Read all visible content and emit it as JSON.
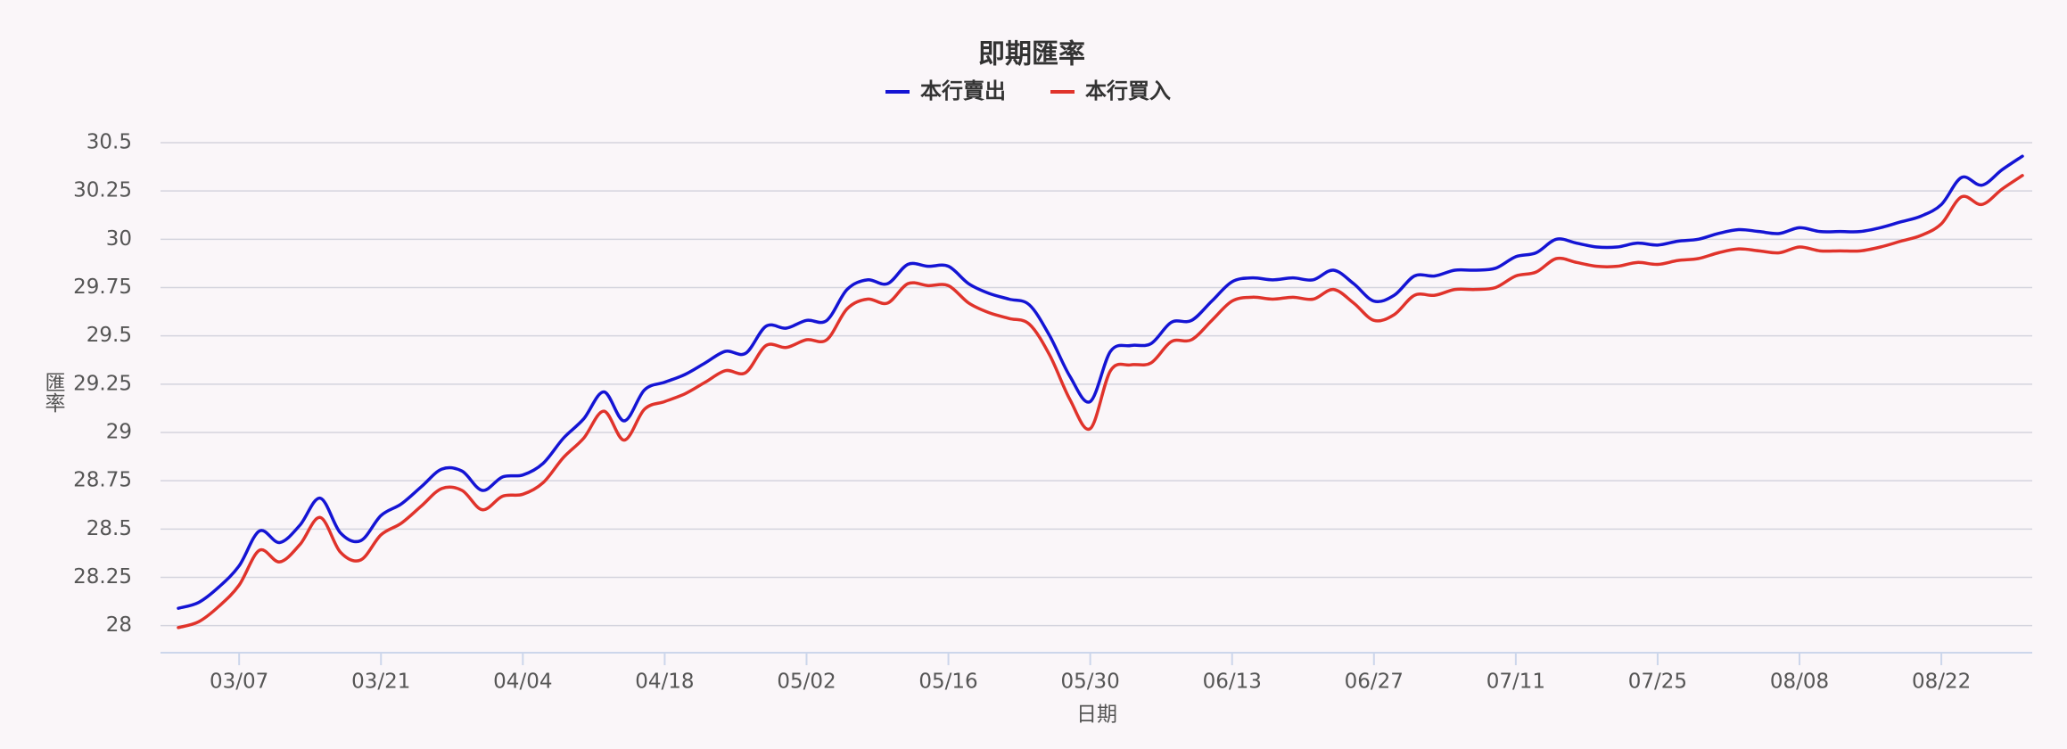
{
  "chart_data": {
    "type": "line",
    "title": "即期匯率",
    "x_label": "日期",
    "y_label": "匯率",
    "categories": [
      "03/01",
      "03/03",
      "03/05",
      "03/07",
      "03/09",
      "03/11",
      "03/13",
      "03/15",
      "03/17",
      "03/19",
      "03/21",
      "03/23",
      "03/25",
      "03/27",
      "03/29",
      "03/31",
      "04/02",
      "04/04",
      "04/06",
      "04/08",
      "04/10",
      "04/12",
      "04/14",
      "04/16",
      "04/18",
      "04/20",
      "04/22",
      "04/24",
      "04/26",
      "04/28",
      "04/30",
      "05/02",
      "05/04",
      "05/06",
      "05/08",
      "05/10",
      "05/12",
      "05/14",
      "05/16",
      "05/18",
      "05/20",
      "05/22",
      "05/24",
      "05/26",
      "05/28",
      "05/30",
      "06/01",
      "06/03",
      "06/05",
      "06/07",
      "06/09",
      "06/11",
      "06/13",
      "06/15",
      "06/17",
      "06/19",
      "06/21",
      "06/23",
      "06/25",
      "06/27",
      "06/29",
      "07/01",
      "07/03",
      "07/05",
      "07/07",
      "07/09",
      "07/11",
      "07/13",
      "07/15",
      "07/17",
      "07/19",
      "07/21",
      "07/23",
      "07/25",
      "07/27",
      "07/29",
      "07/31",
      "08/02",
      "08/04",
      "08/06",
      "08/08",
      "08/10",
      "08/12",
      "08/14",
      "08/16",
      "08/18",
      "08/20",
      "08/22",
      "08/24",
      "08/26",
      "08/28",
      "08/30"
    ],
    "xticks": [
      "03/07",
      "03/21",
      "04/04",
      "04/18",
      "05/02",
      "05/16",
      "05/30",
      "06/13",
      "06/27",
      "07/11",
      "07/25",
      "08/08",
      "08/22"
    ],
    "series": [
      {
        "name": "本行賣出",
        "color": "#1414d4",
        "values": [
          28.09,
          28.12,
          28.2,
          28.31,
          28.49,
          28.43,
          28.52,
          28.66,
          28.48,
          28.44,
          28.57,
          28.63,
          28.72,
          28.81,
          28.8,
          28.7,
          28.77,
          28.78,
          28.84,
          28.97,
          29.07,
          29.21,
          29.06,
          29.22,
          29.26,
          29.3,
          29.36,
          29.42,
          29.41,
          29.55,
          29.54,
          29.58,
          29.58,
          29.74,
          29.79,
          29.77,
          29.87,
          29.86,
          29.86,
          29.77,
          29.72,
          29.69,
          29.66,
          29.5,
          29.29,
          29.16,
          29.42,
          29.45,
          29.46,
          29.57,
          29.58,
          29.68,
          29.78,
          29.8,
          29.79,
          29.8,
          29.79,
          29.84,
          29.77,
          29.68,
          29.71,
          29.81,
          29.81,
          29.84,
          29.84,
          29.85,
          29.91,
          29.93,
          30.0,
          29.98,
          29.96,
          29.96,
          29.98,
          29.97,
          29.99,
          30.0,
          30.03,
          30.05,
          30.04,
          30.03,
          30.06,
          30.04,
          30.04,
          30.04,
          30.06,
          30.09,
          30.12,
          30.18,
          30.32,
          30.28,
          30.36,
          30.43
        ]
      },
      {
        "name": "本行買入",
        "color": "#e0332b",
        "values": [
          27.99,
          28.02,
          28.1,
          28.21,
          28.39,
          28.33,
          28.42,
          28.56,
          28.38,
          28.34,
          28.47,
          28.53,
          28.62,
          28.71,
          28.7,
          28.6,
          28.67,
          28.68,
          28.74,
          28.87,
          28.97,
          29.11,
          28.96,
          29.12,
          29.16,
          29.2,
          29.26,
          29.32,
          29.31,
          29.45,
          29.44,
          29.48,
          29.48,
          29.64,
          29.69,
          29.67,
          29.77,
          29.76,
          29.76,
          29.67,
          29.62,
          29.59,
          29.56,
          29.4,
          29.17,
          29.02,
          29.32,
          29.35,
          29.36,
          29.47,
          29.48,
          29.58,
          29.68,
          29.7,
          29.69,
          29.7,
          29.69,
          29.74,
          29.67,
          29.58,
          29.61,
          29.71,
          29.71,
          29.74,
          29.74,
          29.75,
          29.81,
          29.83,
          29.9,
          29.88,
          29.86,
          29.86,
          29.88,
          29.87,
          29.89,
          29.9,
          29.93,
          29.95,
          29.94,
          29.93,
          29.96,
          29.94,
          29.94,
          29.94,
          29.96,
          29.99,
          30.02,
          30.08,
          30.22,
          30.18,
          30.26,
          30.33
        ]
      }
    ],
    "ylim": [
      27.86,
      30.5
    ],
    "yticks": [
      28,
      28.25,
      28.5,
      28.75,
      29,
      29.25,
      29.5,
      29.75,
      30,
      30.25,
      30.5
    ],
    "grid": true,
    "legend": "top"
  }
}
